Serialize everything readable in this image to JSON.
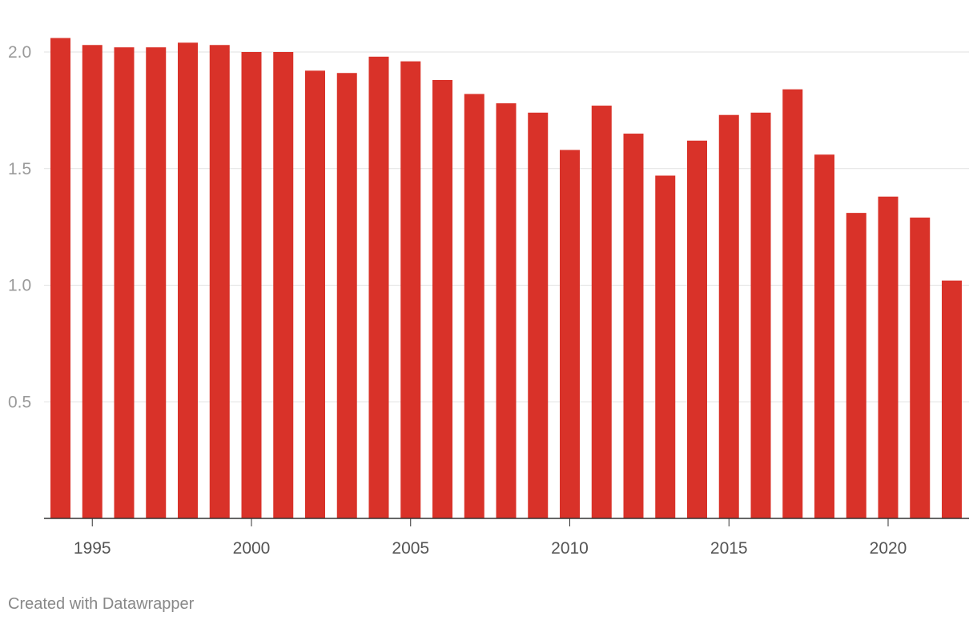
{
  "chart_data": {
    "type": "bar",
    "x": [
      1994,
      1995,
      1996,
      1997,
      1998,
      1999,
      2000,
      2001,
      2002,
      2003,
      2004,
      2005,
      2006,
      2007,
      2008,
      2009,
      2010,
      2011,
      2012,
      2013,
      2014,
      2015,
      2016,
      2017,
      2018,
      2019,
      2020,
      2021,
      2022
    ],
    "values": [
      2.06,
      2.03,
      2.02,
      2.02,
      2.04,
      2.03,
      2.0,
      2.0,
      1.92,
      1.91,
      1.98,
      1.96,
      1.88,
      1.82,
      1.78,
      1.74,
      1.58,
      1.77,
      1.65,
      1.47,
      1.62,
      1.73,
      1.74,
      1.84,
      1.56,
      1.31,
      1.38,
      1.29,
      1.02
    ],
    "title": "",
    "xlabel": "",
    "ylabel": "",
    "ylim": [
      0,
      2.0
    ],
    "y_ticks": [
      "0.5",
      "1.0",
      "1.5",
      "2.0"
    ],
    "x_ticks": [
      "1995",
      "2000",
      "2005",
      "2010",
      "2015",
      "2020"
    ],
    "grid": true,
    "bar_color": "#d93229"
  },
  "footer": {
    "credit": "Created with Datawrapper"
  }
}
